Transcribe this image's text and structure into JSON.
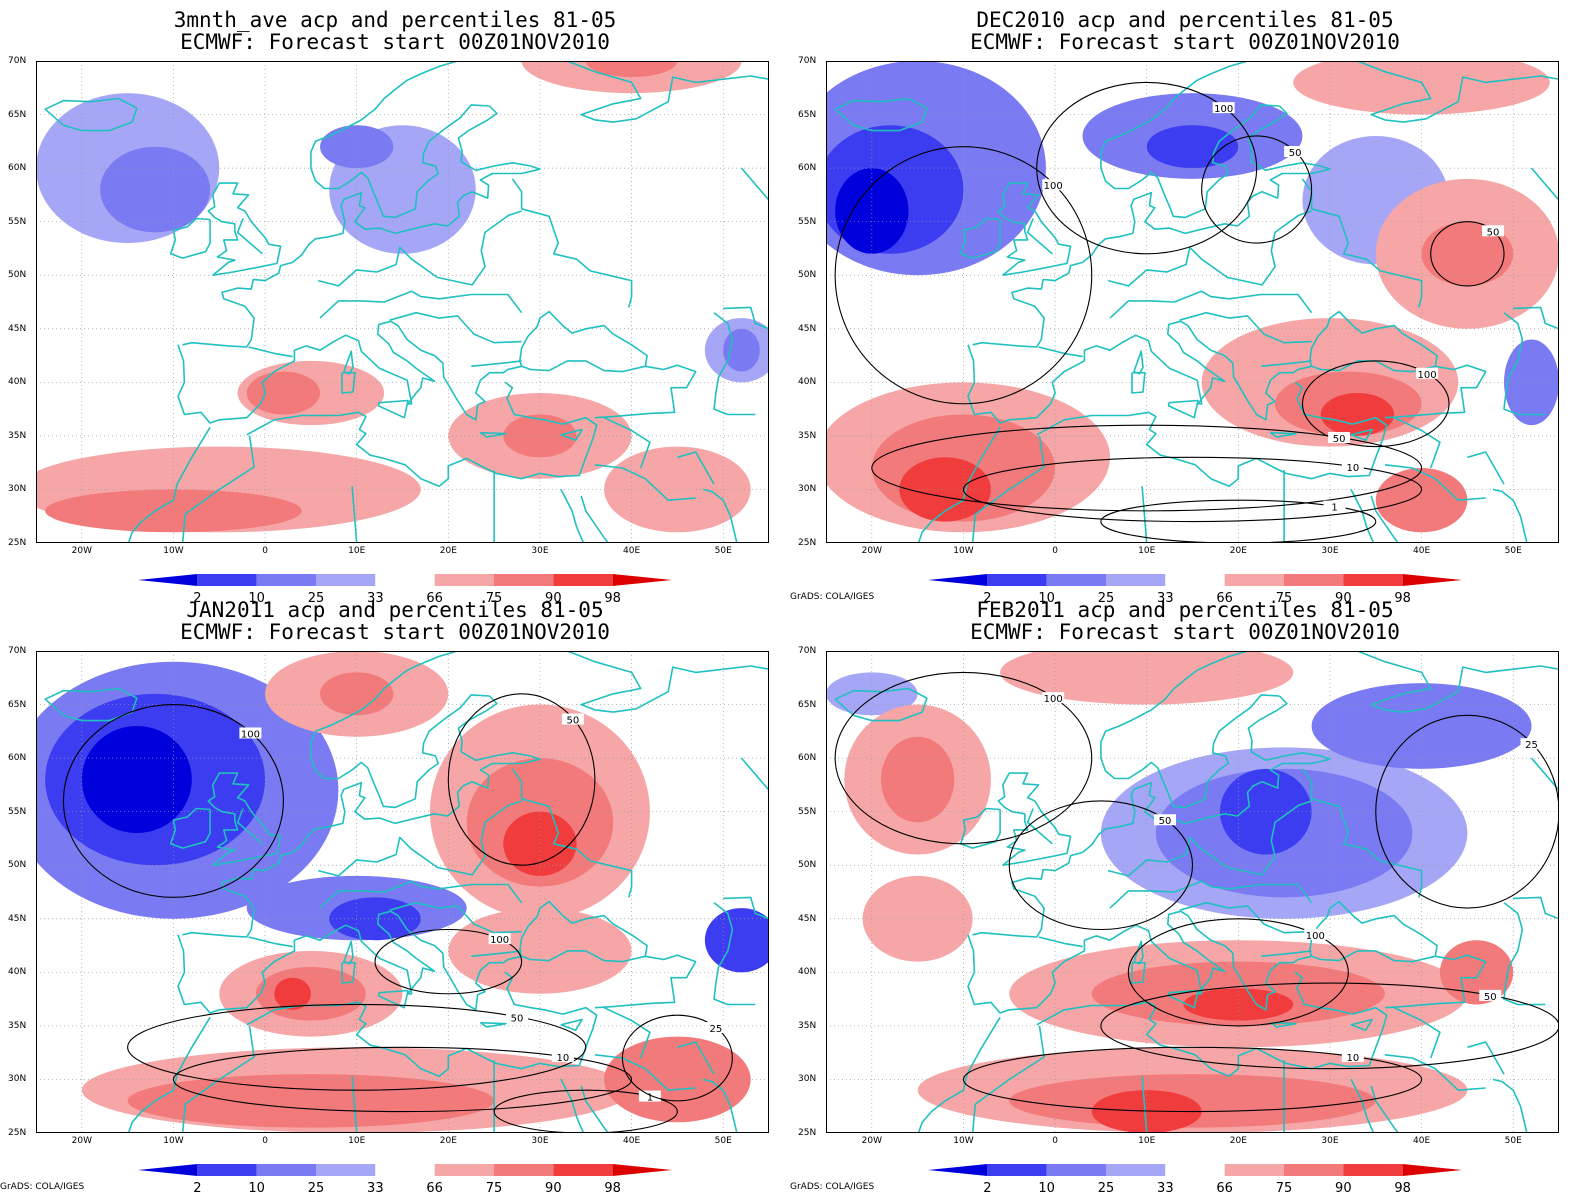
{
  "domain": "map",
  "lat_labels": [
    "70N",
    "65N",
    "60N",
    "55N",
    "50N",
    "45N",
    "40N",
    "35N",
    "30N",
    "25N"
  ],
  "lon_labels": [
    "20W",
    "10W",
    "0",
    "10E",
    "20E",
    "30E",
    "40E",
    "50E"
  ],
  "colorbar": {
    "labels": [
      "2",
      "10",
      "25",
      "33",
      "66",
      "75",
      "90",
      "98"
    ],
    "colors": [
      "#0000dc",
      "#3c3cf0",
      "#7a7af2",
      "#a6a6f6",
      "#ffffff",
      "#f6a6a6",
      "#f27a7a",
      "#f03c3c",
      "#dc0000"
    ]
  },
  "credit": "GrADS: COLA/IGES",
  "palette": {
    "b1": "#0000dc",
    "b2": "#3c3cf0",
    "b3": "#7a7af2",
    "b4": "#a6a6f6",
    "r4": "#f6a6a6",
    "r3": "#f27a7a",
    "r2": "#f03c3c",
    "r1": "#dc0000",
    "coast": "#20c0c0"
  },
  "panels": [
    {
      "title_line1": "3mnth_ave acp and percentiles 81-05",
      "title_line2": "ECMWF: Forecast start 00Z01NOV2010",
      "show_credit": false,
      "blobs": [
        {
          "c": "b4",
          "lon": -15,
          "lat": 60,
          "rl": 10,
          "rt": 7
        },
        {
          "c": "b3",
          "lon": -12,
          "lat": 58,
          "rl": 6,
          "rt": 4
        },
        {
          "c": "b4",
          "lon": 15,
          "lat": 58,
          "rl": 8,
          "rt": 6
        },
        {
          "c": "b3",
          "lon": 10,
          "lat": 62,
          "rl": 4,
          "rt": 2
        },
        {
          "c": "b4",
          "lon": 52,
          "lat": 43,
          "rl": 4,
          "rt": 3
        },
        {
          "c": "b3",
          "lon": 52,
          "lat": 43,
          "rl": 2,
          "rt": 2
        },
        {
          "c": "r4",
          "lon": -5,
          "lat": 30,
          "rl": 22,
          "rt": 4
        },
        {
          "c": "r3",
          "lon": -10,
          "lat": 28,
          "rl": 14,
          "rt": 2
        },
        {
          "c": "r4",
          "lon": 5,
          "lat": 39,
          "rl": 8,
          "rt": 3
        },
        {
          "c": "r3",
          "lon": 2,
          "lat": 39,
          "rl": 4,
          "rt": 2
        },
        {
          "c": "r4",
          "lon": 30,
          "lat": 35,
          "rl": 10,
          "rt": 4
        },
        {
          "c": "r3",
          "lon": 30,
          "lat": 35,
          "rl": 4,
          "rt": 2
        },
        {
          "c": "r4",
          "lon": 45,
          "lat": 30,
          "rl": 8,
          "rt": 4
        },
        {
          "c": "r4",
          "lon": 40,
          "lat": 70,
          "rl": 12,
          "rt": 3
        },
        {
          "c": "r3",
          "lon": 40,
          "lat": 70,
          "rl": 5,
          "rt": 1.5
        }
      ],
      "contours": []
    },
    {
      "title_line1": "DEC2010 acp and percentiles 81-05",
      "title_line2": "ECMWF: Forecast start 00Z01NOV2010",
      "show_credit": true,
      "blobs": [
        {
          "c": "b3",
          "lon": -15,
          "lat": 60,
          "rl": 14,
          "rt": 10
        },
        {
          "c": "b2",
          "lon": -18,
          "lat": 58,
          "rl": 8,
          "rt": 6
        },
        {
          "c": "b1",
          "lon": -20,
          "lat": 56,
          "rl": 4,
          "rt": 4
        },
        {
          "c": "b3",
          "lon": 15,
          "lat": 63,
          "rl": 12,
          "rt": 4
        },
        {
          "c": "b2",
          "lon": 15,
          "lat": 62,
          "rl": 5,
          "rt": 2
        },
        {
          "c": "b4",
          "lon": 35,
          "lat": 57,
          "rl": 8,
          "rt": 6
        },
        {
          "c": "r4",
          "lon": -10,
          "lat": 33,
          "rl": 16,
          "rt": 7
        },
        {
          "c": "r3",
          "lon": -10,
          "lat": 32,
          "rl": 10,
          "rt": 5
        },
        {
          "c": "r2",
          "lon": -12,
          "lat": 30,
          "rl": 5,
          "rt": 3
        },
        {
          "c": "r4",
          "lon": 30,
          "lat": 40,
          "rl": 14,
          "rt": 6
        },
        {
          "c": "r3",
          "lon": 32,
          "lat": 38,
          "rl": 8,
          "rt": 3
        },
        {
          "c": "r2",
          "lon": 33,
          "lat": 37,
          "rl": 4,
          "rt": 2
        },
        {
          "c": "r4",
          "lon": 45,
          "lat": 52,
          "rl": 10,
          "rt": 7
        },
        {
          "c": "r3",
          "lon": 45,
          "lat": 52,
          "rl": 5,
          "rt": 3
        },
        {
          "c": "r4",
          "lon": 40,
          "lat": 68,
          "rl": 14,
          "rt": 3
        },
        {
          "c": "r3",
          "lon": 40,
          "lat": 29,
          "rl": 5,
          "rt": 3
        },
        {
          "c": "b3",
          "lon": 52,
          "lat": 40,
          "rl": 3,
          "rt": 4
        }
      ],
      "contours": [
        {
          "lon": -10,
          "lat": 50,
          "rl": 14,
          "rt": 12,
          "label": "100"
        },
        {
          "lon": 10,
          "lat": 60,
          "rl": 12,
          "rt": 8,
          "label": "100"
        },
        {
          "lon": 22,
          "lat": 58,
          "rl": 6,
          "rt": 5,
          "label": "50"
        },
        {
          "lon": 45,
          "lat": 52,
          "rl": 4,
          "rt": 3,
          "label": "50"
        },
        {
          "lon": 35,
          "lat": 38,
          "rl": 8,
          "rt": 4,
          "label": "100"
        },
        {
          "lon": 10,
          "lat": 32,
          "rl": 30,
          "rt": 4,
          "label": "50"
        },
        {
          "lon": 15,
          "lat": 30,
          "rl": 25,
          "rt": 3,
          "label": "10"
        },
        {
          "lon": 20,
          "lat": 27,
          "rl": 15,
          "rt": 2,
          "label": "1"
        }
      ]
    },
    {
      "title_line1": "JAN2011 acp and percentiles 81-05",
      "title_line2": "ECMWF: Forecast start 00Z01NOV2010",
      "show_credit": true,
      "blobs": [
        {
          "c": "b3",
          "lon": -10,
          "lat": 57,
          "rl": 18,
          "rt": 12
        },
        {
          "c": "b2",
          "lon": -12,
          "lat": 58,
          "rl": 12,
          "rt": 8
        },
        {
          "c": "b1",
          "lon": -14,
          "lat": 58,
          "rl": 6,
          "rt": 5
        },
        {
          "c": "b3",
          "lon": 10,
          "lat": 46,
          "rl": 12,
          "rt": 3
        },
        {
          "c": "b2",
          "lon": 12,
          "lat": 45,
          "rl": 5,
          "rt": 2
        },
        {
          "c": "b2",
          "lon": 52,
          "lat": 43,
          "rl": 4,
          "rt": 3
        },
        {
          "c": "r4",
          "lon": 30,
          "lat": 55,
          "rl": 12,
          "rt": 10
        },
        {
          "c": "r3",
          "lon": 30,
          "lat": 54,
          "rl": 8,
          "rt": 6
        },
        {
          "c": "r2",
          "lon": 30,
          "lat": 52,
          "rl": 4,
          "rt": 3
        },
        {
          "c": "r4",
          "lon": 10,
          "lat": 66,
          "rl": 10,
          "rt": 4
        },
        {
          "c": "r3",
          "lon": 10,
          "lat": 66,
          "rl": 4,
          "rt": 2
        },
        {
          "c": "r4",
          "lon": 5,
          "lat": 38,
          "rl": 10,
          "rt": 4
        },
        {
          "c": "r3",
          "lon": 5,
          "lat": 38,
          "rl": 6,
          "rt": 2.5
        },
        {
          "c": "r2",
          "lon": 3,
          "lat": 38,
          "rl": 2,
          "rt": 1.5
        },
        {
          "c": "r4",
          "lon": 10,
          "lat": 29,
          "rl": 30,
          "rt": 4
        },
        {
          "c": "r3",
          "lon": 5,
          "lat": 28,
          "rl": 20,
          "rt": 2.5
        },
        {
          "c": "r4",
          "lon": 30,
          "lat": 42,
          "rl": 10,
          "rt": 4
        },
        {
          "c": "r3",
          "lon": 45,
          "lat": 30,
          "rl": 8,
          "rt": 4
        }
      ],
      "contours": [
        {
          "lon": -10,
          "lat": 56,
          "rl": 12,
          "rt": 9,
          "label": "100"
        },
        {
          "lon": 28,
          "lat": 58,
          "rl": 8,
          "rt": 8,
          "label": "50"
        },
        {
          "lon": 20,
          "lat": 41,
          "rl": 8,
          "rt": 3,
          "label": "100"
        },
        {
          "lon": 10,
          "lat": 33,
          "rl": 25,
          "rt": 4,
          "label": "50"
        },
        {
          "lon": 15,
          "lat": 30,
          "rl": 25,
          "rt": 3,
          "label": "10"
        },
        {
          "lon": 35,
          "lat": 27,
          "rl": 10,
          "rt": 2,
          "label": "1"
        },
        {
          "lon": 45,
          "lat": 32,
          "rl": 6,
          "rt": 4,
          "label": "25"
        }
      ]
    },
    {
      "title_line1": "FEB2011 acp and percentiles 81-05",
      "title_line2": "ECMWF: Forecast start 00Z01NOV2010",
      "show_credit": true,
      "blobs": [
        {
          "c": "b4",
          "lon": 25,
          "lat": 53,
          "rl": 20,
          "rt": 8
        },
        {
          "c": "b3",
          "lon": 25,
          "lat": 53,
          "rl": 14,
          "rt": 6
        },
        {
          "c": "b2",
          "lon": 23,
          "lat": 55,
          "rl": 5,
          "rt": 4
        },
        {
          "c": "b3",
          "lon": 40,
          "lat": 63,
          "rl": 12,
          "rt": 4
        },
        {
          "c": "b4",
          "lon": -20,
          "lat": 66,
          "rl": 5,
          "rt": 2
        },
        {
          "c": "r4",
          "lon": -15,
          "lat": 58,
          "rl": 8,
          "rt": 7
        },
        {
          "c": "r3",
          "lon": -15,
          "lat": 58,
          "rl": 4,
          "rt": 4
        },
        {
          "c": "r4",
          "lon": 10,
          "lat": 68,
          "rl": 16,
          "rt": 3
        },
        {
          "c": "r4",
          "lon": 20,
          "lat": 38,
          "rl": 25,
          "rt": 5
        },
        {
          "c": "r3",
          "lon": 20,
          "lat": 38,
          "rl": 16,
          "rt": 3
        },
        {
          "c": "r2",
          "lon": 20,
          "lat": 37,
          "rl": 6,
          "rt": 1.5
        },
        {
          "c": "r4",
          "lon": 15,
          "lat": 29,
          "rl": 30,
          "rt": 4
        },
        {
          "c": "r3",
          "lon": 15,
          "lat": 28,
          "rl": 20,
          "rt": 2.5
        },
        {
          "c": "r2",
          "lon": 10,
          "lat": 27,
          "rl": 6,
          "rt": 2
        },
        {
          "c": "r4",
          "lon": -15,
          "lat": 45,
          "rl": 6,
          "rt": 4
        },
        {
          "c": "r3",
          "lon": 46,
          "lat": 40,
          "rl": 4,
          "rt": 3
        }
      ],
      "contours": [
        {
          "lon": -10,
          "lat": 60,
          "rl": 14,
          "rt": 8,
          "label": "100"
        },
        {
          "lon": 5,
          "lat": 50,
          "rl": 10,
          "rt": 6,
          "label": "50"
        },
        {
          "lon": 20,
          "lat": 40,
          "rl": 12,
          "rt": 5,
          "label": "100"
        },
        {
          "lon": 30,
          "lat": 35,
          "rl": 25,
          "rt": 4,
          "label": "50"
        },
        {
          "lon": 15,
          "lat": 30,
          "rl": 25,
          "rt": 3,
          "label": "10"
        },
        {
          "lon": 45,
          "lat": 55,
          "rl": 10,
          "rt": 9,
          "label": "25"
        }
      ]
    }
  ]
}
